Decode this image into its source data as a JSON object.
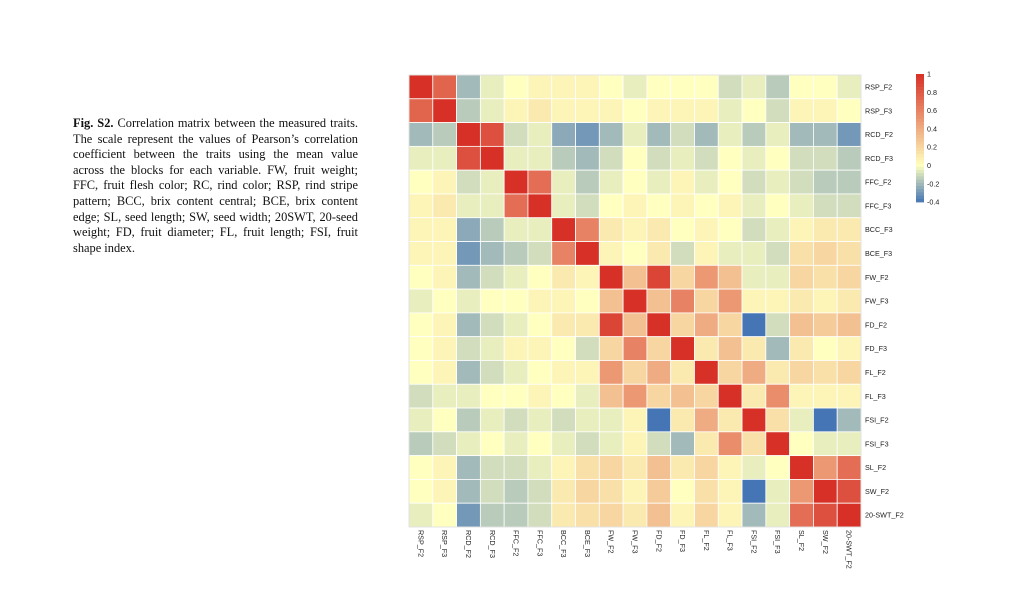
{
  "caption": {
    "label": "Fig. S2.",
    "text": " Correlation matrix between the measured traits. The scale represent the values of Pearson’s correlation coefficient between the traits using the mean value across the blocks for each variable. FW, fruit weight; FFC, fruit flesh color; RC, rind color; RSP, rind stripe pattern; BCC, brix content central; BCE, brix content edge; SL, seed length; SW, seed width; 20SWT, 20-seed weight; FD, fruit diameter; FL, fruit length; FSI, fruit shape index."
  },
  "chart_data": {
    "type": "heatmap",
    "labels": [
      "RSP_F2",
      "RSP_F3",
      "RCD_F2",
      "RCD_F3",
      "FFC_F2",
      "FFC_F3",
      "BCC_F3",
      "BCE_F3",
      "FW_F2",
      "FW_F3",
      "FD_F2",
      "FD_F3",
      "FL_F2",
      "FL_F3",
      "FSI_F2",
      "FSI_F3",
      "SL_F2",
      "SW_F2",
      "20-SWT_F2"
    ],
    "values": [
      [
        1.0,
        0.75,
        -0.2,
        -0.05,
        0.0,
        0.05,
        0.05,
        0.05,
        0.0,
        -0.05,
        0.0,
        0.0,
        0.0,
        -0.1,
        -0.05,
        -0.15,
        0.0,
        0.0,
        -0.05
      ],
      [
        0.75,
        1.0,
        -0.15,
        -0.05,
        0.05,
        0.1,
        0.05,
        0.05,
        0.05,
        0.0,
        0.05,
        0.05,
        0.05,
        -0.05,
        0.0,
        -0.1,
        0.05,
        0.05,
        0.0
      ],
      [
        -0.2,
        -0.15,
        1.0,
        0.85,
        -0.1,
        -0.05,
        -0.25,
        -0.3,
        -0.2,
        -0.05,
        -0.2,
        -0.1,
        -0.2,
        -0.05,
        -0.15,
        -0.05,
        -0.2,
        -0.2,
        -0.3
      ],
      [
        -0.05,
        -0.05,
        0.85,
        1.0,
        -0.05,
        -0.05,
        -0.15,
        -0.2,
        -0.1,
        0.0,
        -0.1,
        -0.05,
        -0.1,
        0.0,
        -0.05,
        0.0,
        -0.1,
        -0.1,
        -0.15
      ],
      [
        0.0,
        0.05,
        -0.1,
        -0.05,
        1.0,
        0.7,
        -0.05,
        -0.15,
        -0.05,
        0.0,
        -0.05,
        0.05,
        -0.05,
        0.0,
        -0.1,
        -0.05,
        -0.1,
        -0.15,
        -0.15
      ],
      [
        0.05,
        0.1,
        -0.05,
        -0.05,
        0.7,
        1.0,
        -0.05,
        -0.1,
        0.0,
        0.05,
        0.0,
        0.05,
        0.0,
        0.05,
        -0.05,
        0.0,
        -0.05,
        -0.1,
        -0.1
      ],
      [
        0.05,
        0.05,
        -0.25,
        -0.15,
        -0.05,
        -0.05,
        1.0,
        0.6,
        0.1,
        0.05,
        0.1,
        0.0,
        0.05,
        0.0,
        -0.1,
        -0.05,
        0.05,
        0.1,
        0.1
      ],
      [
        0.05,
        0.05,
        -0.3,
        -0.2,
        -0.15,
        -0.1,
        0.6,
        1.0,
        0.05,
        0.0,
        0.1,
        -0.1,
        0.05,
        -0.05,
        -0.05,
        -0.1,
        0.15,
        0.2,
        0.15
      ],
      [
        0.0,
        0.05,
        -0.2,
        -0.1,
        -0.05,
        0.0,
        0.1,
        0.05,
        1.0,
        0.3,
        0.9,
        0.2,
        0.5,
        0.3,
        -0.05,
        -0.05,
        0.2,
        0.15,
        0.2
      ],
      [
        -0.05,
        0.0,
        -0.05,
        0.0,
        0.0,
        0.05,
        0.05,
        0.0,
        0.3,
        1.0,
        0.3,
        0.6,
        0.2,
        0.5,
        0.05,
        0.05,
        0.1,
        0.05,
        0.1
      ],
      [
        0.0,
        0.05,
        -0.2,
        -0.1,
        -0.05,
        0.0,
        0.1,
        0.1,
        0.9,
        0.3,
        1.0,
        0.2,
        0.4,
        0.2,
        -0.4,
        -0.1,
        0.3,
        0.25,
        0.3
      ],
      [
        0.0,
        0.05,
        -0.1,
        -0.05,
        0.05,
        0.05,
        0.0,
        -0.1,
        0.2,
        0.6,
        0.2,
        1.0,
        0.1,
        0.3,
        0.1,
        -0.2,
        0.1,
        0.0,
        0.05
      ],
      [
        0.0,
        0.05,
        -0.2,
        -0.1,
        -0.05,
        0.0,
        0.05,
        0.05,
        0.5,
        0.2,
        0.4,
        0.1,
        1.0,
        0.2,
        0.4,
        0.1,
        0.2,
        0.15,
        0.2
      ],
      [
        -0.1,
        -0.05,
        -0.05,
        0.0,
        0.0,
        0.05,
        0.0,
        -0.05,
        0.3,
        0.5,
        0.2,
        0.3,
        0.2,
        1.0,
        0.1,
        0.55,
        0.05,
        0.05,
        0.05
      ],
      [
        -0.05,
        0.0,
        -0.15,
        -0.05,
        -0.1,
        -0.05,
        -0.1,
        -0.05,
        -0.05,
        0.05,
        -0.4,
        0.1,
        0.4,
        0.1,
        1.0,
        0.15,
        -0.05,
        -0.4,
        -0.2
      ],
      [
        -0.15,
        -0.1,
        -0.05,
        0.0,
        -0.05,
        0.0,
        -0.05,
        -0.1,
        -0.05,
        0.05,
        -0.1,
        -0.2,
        0.1,
        0.55,
        0.15,
        1.0,
        0.0,
        -0.05,
        -0.05
      ],
      [
        0.0,
        0.05,
        -0.2,
        -0.1,
        -0.1,
        -0.05,
        0.05,
        0.15,
        0.2,
        0.1,
        0.3,
        0.1,
        0.2,
        0.05,
        -0.05,
        0.0,
        1.0,
        0.5,
        0.7
      ],
      [
        0.0,
        0.05,
        -0.2,
        -0.1,
        -0.15,
        -0.1,
        0.1,
        0.2,
        0.15,
        0.05,
        0.25,
        0.0,
        0.15,
        0.05,
        -0.4,
        -0.05,
        0.5,
        1.0,
        0.85
      ],
      [
        -0.05,
        0.0,
        -0.3,
        -0.15,
        -0.15,
        -0.1,
        0.1,
        0.15,
        0.2,
        0.1,
        0.3,
        0.05,
        0.2,
        0.05,
        -0.2,
        -0.05,
        0.7,
        0.85,
        1.0
      ]
    ],
    "legend": {
      "ticks": [
        "1",
        "0.8",
        "0.6",
        "0.4",
        "0.2",
        "0",
        "-0.2",
        "-0.4"
      ],
      "range": [
        -0.4,
        1.0
      ],
      "colors": {
        "low": "#4575b4",
        "mid": "#ffffbf",
        "high": "#d73027"
      }
    },
    "grid": true,
    "legend_position": "right"
  }
}
